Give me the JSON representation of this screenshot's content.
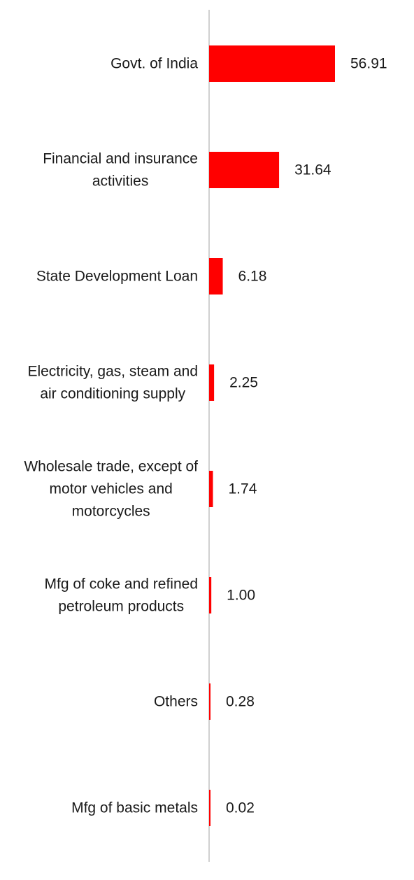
{
  "chart_data": {
    "type": "bar",
    "orientation": "horizontal",
    "categories": [
      "Govt. of India",
      "Financial and insurance activities",
      "State Development Loan",
      "Electricity, gas, steam and air conditioning supply",
      "Wholesale trade, except of motor vehicles and motorcycles",
      "Mfg of coke and refined petroleum products",
      "Others",
      "Mfg of basic metals"
    ],
    "category_lines": [
      [
        "Govt. of India"
      ],
      [
        "Financial and insurance",
        "activities"
      ],
      [
        "State Development Loan"
      ],
      [
        "Electricity, gas, steam and",
        "air conditioning supply"
      ],
      [
        "Wholesale trade, except of",
        "motor vehicles and",
        "motorcycles"
      ],
      [
        "Mfg of coke and refined",
        "petroleum products"
      ],
      [
        "Others"
      ],
      [
        "Mfg of basic metals"
      ]
    ],
    "values": [
      56.91,
      31.64,
      6.18,
      2.25,
      1.74,
      1.0,
      0.28,
      0.02
    ],
    "value_labels": [
      "56.91",
      "31.64",
      "6.18",
      "2.25",
      "1.74",
      "1.00",
      "0.28",
      "0.02"
    ],
    "title": "",
    "xlabel": "",
    "ylabel": "",
    "xlim": [
      0,
      100
    ],
    "grid": false,
    "bar_color": "#ff0000",
    "axis_color": "#d0d0d0"
  }
}
